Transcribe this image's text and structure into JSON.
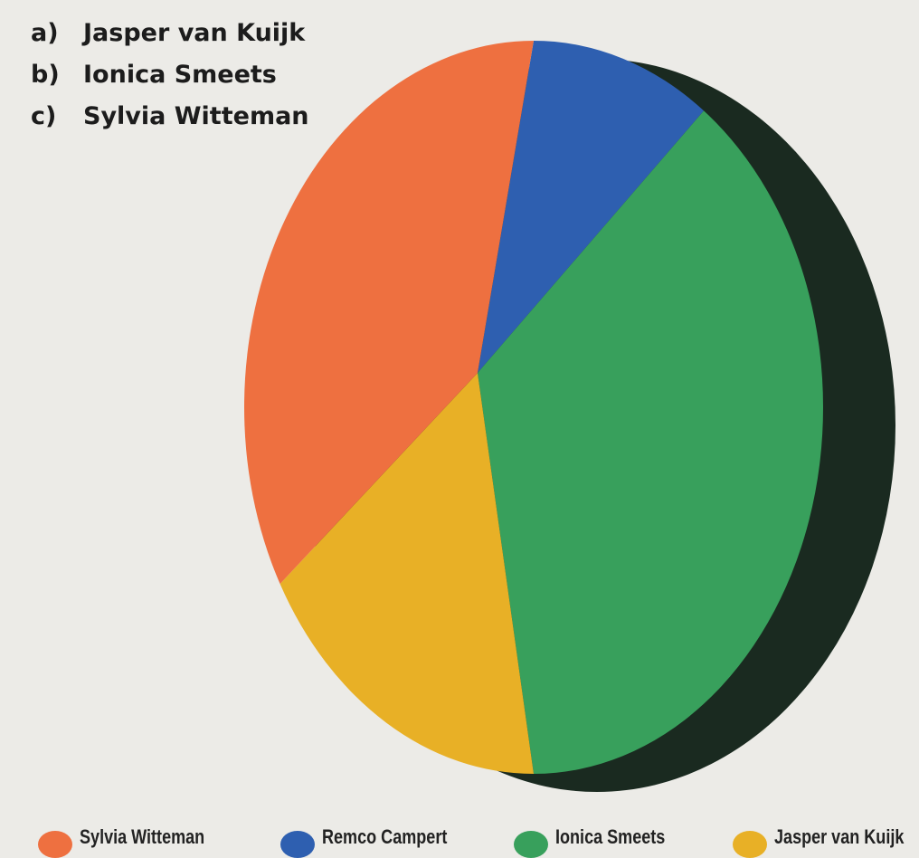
{
  "quiz": {
    "options": [
      {
        "letter": "a)",
        "name": "Jasper van Kuijk"
      },
      {
        "letter": "b)",
        "name": "Ionica Smeets"
      },
      {
        "letter": "c)",
        "name": "Sylvia Witteman"
      }
    ]
  },
  "chart_data": {
    "type": "pie",
    "style": "3d-tilted",
    "labels": [
      "Remco Campert",
      "Ionica Smeets",
      "Jasper van Kuijk",
      "Sylvia Witteman"
    ],
    "values": [
      10,
      40,
      17,
      33
    ],
    "unit": "%",
    "colors": [
      "#2e5fb0",
      "#38a05c",
      "#e8b026",
      "#ee7040"
    ],
    "shadow_color": "#1a2a20",
    "legend": {
      "position": "bottom",
      "entries": [
        {
          "label": "Sylvia Witteman",
          "color": "#ee7040"
        },
        {
          "label": "Remco Campert",
          "color": "#2e5fb0"
        },
        {
          "label": "Ionica Smeets",
          "color": "#38a05c"
        },
        {
          "label": "Jasper van Kuijk",
          "color": "#e8b026"
        }
      ]
    },
    "title": "",
    "data_labels": false
  }
}
